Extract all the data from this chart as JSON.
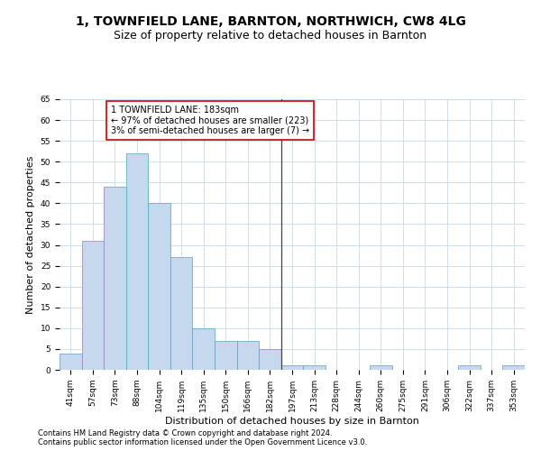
{
  "title": "1, TOWNFIELD LANE, BARNTON, NORTHWICH, CW8 4LG",
  "subtitle": "Size of property relative to detached houses in Barnton",
  "xlabel": "Distribution of detached houses by size in Barnton",
  "ylabel": "Number of detached properties",
  "categories": [
    "41sqm",
    "57sqm",
    "73sqm",
    "88sqm",
    "104sqm",
    "119sqm",
    "135sqm",
    "150sqm",
    "166sqm",
    "182sqm",
    "197sqm",
    "213sqm",
    "228sqm",
    "244sqm",
    "260sqm",
    "275sqm",
    "291sqm",
    "306sqm",
    "322sqm",
    "337sqm",
    "353sqm"
  ],
  "values": [
    4,
    31,
    44,
    52,
    40,
    27,
    10,
    7,
    7,
    5,
    1,
    1,
    0,
    0,
    1,
    0,
    0,
    0,
    1,
    0,
    1
  ],
  "bar_color": "#c5d8ed",
  "bar_edge_color": "#5a9ec8",
  "vline_x_index": 9.5,
  "vline_color": "#444444",
  "annotation_text": "1 TOWNFIELD LANE: 183sqm\n← 97% of detached houses are smaller (223)\n3% of semi-detached houses are larger (7) →",
  "annotation_box_color": "#ffffff",
  "annotation_box_edge": "#cc0000",
  "ylim": [
    0,
    65
  ],
  "yticks": [
    0,
    5,
    10,
    15,
    20,
    25,
    30,
    35,
    40,
    45,
    50,
    55,
    60,
    65
  ],
  "bg_color": "#ffffff",
  "grid_color": "#c8d8ea",
  "footnote1": "Contains HM Land Registry data © Crown copyright and database right 2024.",
  "footnote2": "Contains public sector information licensed under the Open Government Licence v3.0.",
  "title_fontsize": 10,
  "subtitle_fontsize": 9,
  "axis_label_fontsize": 8,
  "tick_fontsize": 6.5,
  "annotation_fontsize": 7,
  "footnote_fontsize": 6
}
